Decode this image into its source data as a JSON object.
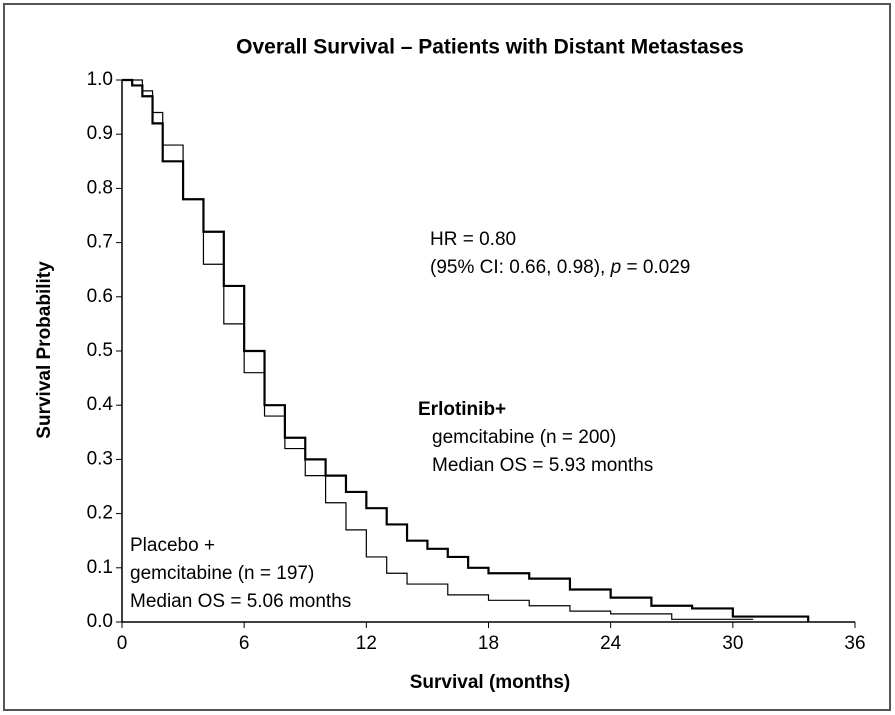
{
  "chart_data": {
    "type": "line",
    "step": true,
    "title": "Overall Survival – Patients with Distant Metastases",
    "x_label": "Survival (months)",
    "y_label": "Survival Probability",
    "xlim": [
      0,
      36
    ],
    "ylim": [
      0,
      1
    ],
    "xticks": [
      0,
      6,
      12,
      18,
      24,
      30,
      36
    ],
    "yticks": [
      {
        "value": 0,
        "label": "0.0"
      },
      0.1,
      0.2,
      0.3,
      0.4,
      0.5,
      0.6,
      0.7,
      0.8,
      0.9,
      {
        "value": 1,
        "label": "1.0"
      }
    ],
    "series": [
      {
        "name": "Erlotinib+",
        "label_lines": [
          "gemcitabine (n = 200)",
          "Median OS = 5.93 months"
        ],
        "color": "#000000",
        "x": [
          0,
          0.5,
          1,
          1.5,
          2,
          3,
          4,
          5,
          6,
          7,
          8,
          9,
          10,
          11,
          12,
          13,
          14,
          15,
          16,
          17,
          18,
          20,
          22,
          24,
          26,
          28,
          30,
          33.7
        ],
        "values": [
          1.0,
          0.99,
          0.97,
          0.92,
          0.85,
          0.78,
          0.72,
          0.62,
          0.5,
          0.4,
          0.34,
          0.3,
          0.27,
          0.24,
          0.21,
          0.18,
          0.15,
          0.135,
          0.12,
          0.1,
          0.09,
          0.08,
          0.06,
          0.045,
          0.03,
          0.025,
          0.01,
          0
        ]
      },
      {
        "name": "Placebo +",
        "label_lines": [
          "gemcitabine (n = 197)",
          "Median OS = 5.06 months"
        ],
        "color": "#000000",
        "x": [
          0,
          1,
          1.5,
          2,
          3,
          4,
          5,
          6,
          7,
          8,
          9,
          10,
          11,
          12,
          13,
          14,
          16,
          18,
          20,
          22,
          24,
          27,
          31
        ],
        "values": [
          1.0,
          0.98,
          0.94,
          0.88,
          0.78,
          0.66,
          0.55,
          0.46,
          0.38,
          0.32,
          0.27,
          0.22,
          0.17,
          0.12,
          0.09,
          0.07,
          0.05,
          0.04,
          0.03,
          0.02,
          0.015,
          0.005,
          0.005
        ]
      }
    ],
    "annotation": {
      "hr": "HR = 0.80",
      "ci": [
        "(95% CI: 0.66, 0.98), ",
        "p",
        " = 0.029"
      ]
    }
  }
}
